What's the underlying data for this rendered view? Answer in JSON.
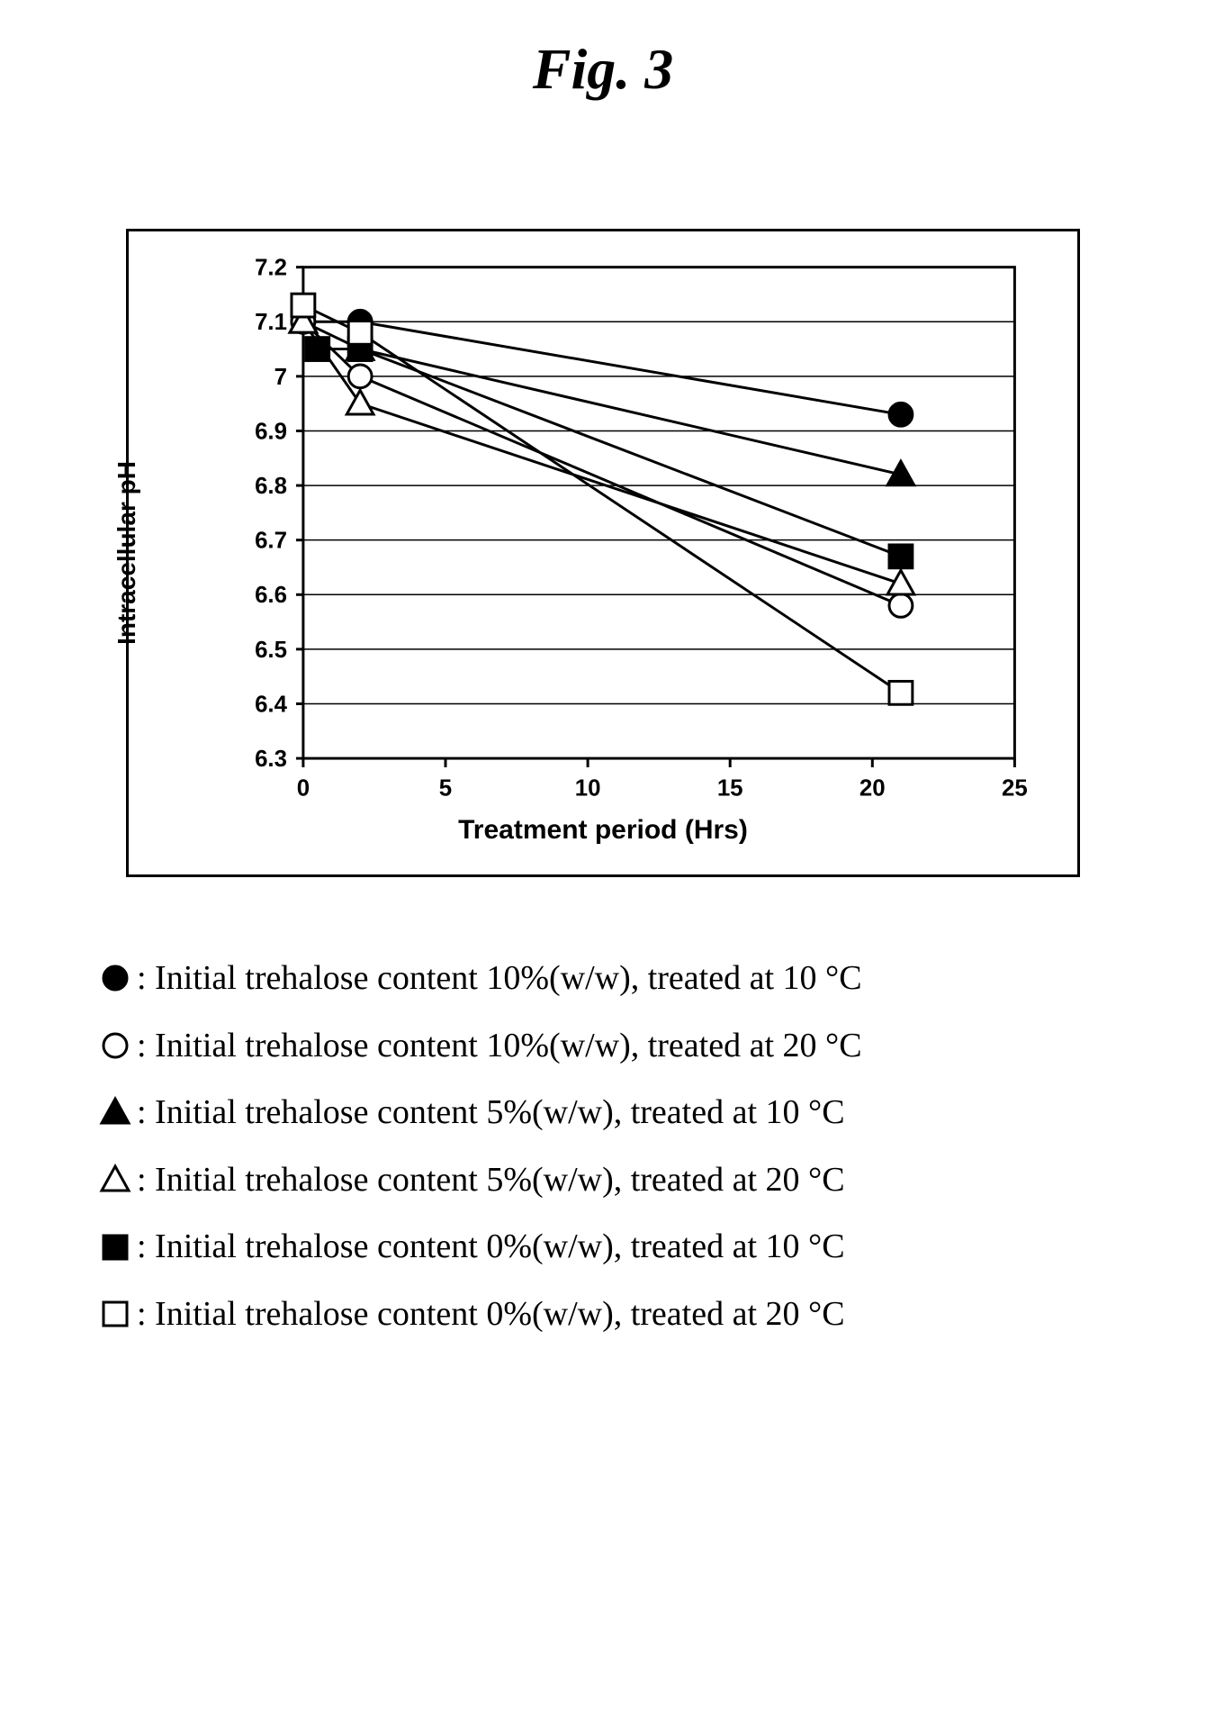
{
  "figure": {
    "title": "Fig. 3",
    "title_fontsize": 64,
    "title_fontstyle": "italic",
    "title_fontweight": "bold",
    "outer_border_color": "#000000",
    "outer_border_width": 3,
    "background_color": "#ffffff"
  },
  "chart": {
    "type": "line",
    "xlabel": "Treatment period (Hrs)",
    "ylabel": "Intracellular pH",
    "label_fontfamily": "Arial",
    "label_fontsize": 28,
    "label_fontweight": "bold",
    "tick_fontfamily": "Arial",
    "tick_fontsize": 26,
    "tick_fontweight": "bold",
    "xlim": [
      0,
      25
    ],
    "ylim": [
      6.3,
      7.2
    ],
    "xticks": [
      0,
      5,
      10,
      15,
      20,
      25
    ],
    "yticks": [
      6.3,
      6.4,
      6.5,
      6.6,
      6.7,
      6.8,
      6.9,
      7.0,
      7.1,
      7.2
    ],
    "ytick_labels": [
      "6.3",
      "6.4",
      "6.5",
      "6.6",
      "6.7",
      "6.8",
      "6.9",
      "7",
      "7.1",
      "7.2"
    ],
    "grid_color": "#000000",
    "grid_linewidth": 1.5,
    "axis_color": "#000000",
    "axis_linewidth": 3,
    "line_color": "#000000",
    "line_width": 3,
    "marker_size": 26,
    "marker_stroke": "#000000",
    "marker_stroke_width": 3,
    "series": [
      {
        "key": "filled_circle",
        "marker": "circle",
        "fill": "#000000",
        "x": [
          0,
          2,
          21
        ],
        "y": [
          7.1,
          7.1,
          6.93
        ]
      },
      {
        "key": "open_circle",
        "marker": "circle",
        "fill": "#ffffff",
        "x": [
          0,
          2,
          21
        ],
        "y": [
          7.1,
          7.0,
          6.58
        ]
      },
      {
        "key": "filled_triangle",
        "marker": "triangle",
        "fill": "#000000",
        "x": [
          0,
          2,
          21
        ],
        "y": [
          7.1,
          7.05,
          6.82
        ]
      },
      {
        "key": "open_triangle",
        "marker": "triangle",
        "fill": "#ffffff",
        "x": [
          0,
          2,
          21
        ],
        "y": [
          7.1,
          6.95,
          6.62
        ]
      },
      {
        "key": "filled_square",
        "marker": "square",
        "fill": "#000000",
        "x": [
          0.5,
          2,
          21
        ],
        "y": [
          7.05,
          7.05,
          6.67
        ]
      },
      {
        "key": "open_square",
        "marker": "square",
        "fill": "#ffffff",
        "x": [
          0,
          2,
          21
        ],
        "y": [
          7.13,
          7.08,
          6.42
        ]
      }
    ]
  },
  "legend": {
    "fontfamily": "Times New Roman",
    "fontsize": 38,
    "items": [
      {
        "marker": "circle",
        "fill": "#000000",
        "text": ": Initial trehalose content 10%(w/w), treated at 10 °C"
      },
      {
        "marker": "circle",
        "fill": "#ffffff",
        "text": ": Initial trehalose content 10%(w/w), treated at 20 °C"
      },
      {
        "marker": "triangle",
        "fill": "#000000",
        "text": ": Initial trehalose content 5%(w/w), treated at 10 °C"
      },
      {
        "marker": "triangle",
        "fill": "#ffffff",
        "text": ": Initial trehalose content 5%(w/w), treated at 20 °C"
      },
      {
        "marker": "square",
        "fill": "#000000",
        "text": ": Initial trehalose content 0%(w/w), treated at 10 °C"
      },
      {
        "marker": "square",
        "fill": "#ffffff",
        "text": ": Initial trehalose content 0%(w/w), treated at 20 °C"
      }
    ]
  }
}
